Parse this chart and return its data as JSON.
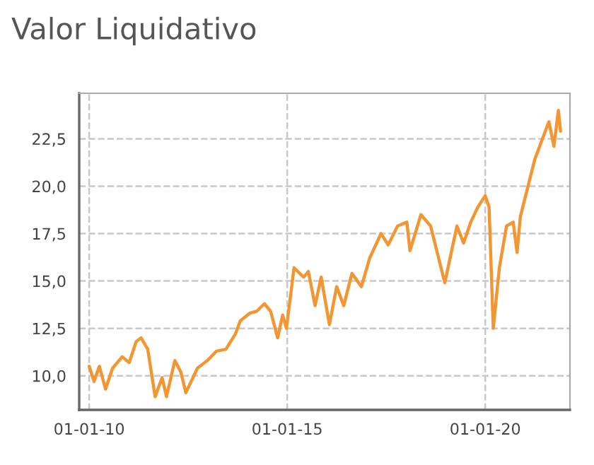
{
  "chart_data": {
    "type": "line",
    "title": "Valor Liquidativo",
    "x": [
      "2010-01-01",
      "2010-02-15",
      "2010-04-05",
      "2010-06-01",
      "2010-08-05",
      "2010-11-01",
      "2011-01-05",
      "2011-03-10",
      "2011-04-25",
      "2011-06-25",
      "2011-09-01",
      "2011-11-05",
      "2011-12-15",
      "2012-03-01",
      "2012-04-25",
      "2012-06-10",
      "2012-09-25",
      "2012-12-25",
      "2013-03-20",
      "2013-06-15",
      "2013-09-10",
      "2013-10-25",
      "2014-01-20",
      "2014-03-25",
      "2014-06-05",
      "2014-08-01",
      "2014-10-05",
      "2014-11-20",
      "2014-12-25",
      "2015-03-05",
      "2015-06-01",
      "2015-07-15",
      "2015-09-15",
      "2015-11-10",
      "2016-01-25",
      "2016-04-01",
      "2016-06-05",
      "2016-08-20",
      "2016-11-15",
      "2017-01-30",
      "2017-05-15",
      "2017-07-20",
      "2017-10-15",
      "2018-01-08",
      "2018-02-06",
      "2018-05-18",
      "2018-08-15",
      "2018-12-24",
      "2019-04-15",
      "2019-06-15",
      "2019-08-20",
      "2019-10-25",
      "2020-01-01",
      "2020-02-05",
      "2020-03-15",
      "2020-05-10",
      "2020-07-15",
      "2020-09-15",
      "2020-10-20",
      "2020-11-20",
      "2021-01-25",
      "2021-04-01",
      "2021-06-05",
      "2021-08-10",
      "2021-09-25",
      "2021-11-05",
      "2021-11-25"
    ],
    "series": [
      {
        "color": "#f39531",
        "values": [
          10.5,
          9.7,
          10.5,
          9.3,
          10.4,
          11.0,
          10.7,
          11.8,
          12.0,
          11.4,
          8.9,
          9.9,
          8.9,
          10.8,
          10.2,
          9.1,
          10.4,
          10.8,
          11.3,
          11.4,
          12.2,
          12.9,
          13.3,
          13.4,
          13.8,
          13.4,
          12.0,
          13.2,
          12.5,
          15.7,
          15.2,
          15.5,
          13.7,
          15.2,
          12.7,
          14.7,
          13.7,
          15.4,
          14.7,
          16.2,
          17.5,
          16.9,
          17.9,
          18.1,
          16.6,
          18.5,
          17.9,
          14.9,
          17.9,
          17.0,
          18.1,
          18.9,
          19.5,
          18.9,
          12.5,
          15.7,
          17.9,
          18.1,
          16.5,
          18.4,
          19.9,
          21.4,
          22.4,
          23.4,
          22.1,
          24.0,
          22.9
        ]
      }
    ],
    "xlim": [
      "2009-10-01",
      "2022-02-20"
    ],
    "xticks": [
      {
        "value": "2010-01-01",
        "label": "01-01-10"
      },
      {
        "value": "2015-01-01",
        "label": "01-01-15"
      },
      {
        "value": "2020-01-01",
        "label": "01-01-20"
      }
    ],
    "ylim": [
      8.2,
      24.9
    ],
    "yticks": [
      {
        "value": 10.0,
        "label": "10,0"
      },
      {
        "value": 12.5,
        "label": "12,5"
      },
      {
        "value": 15.0,
        "label": "15,0"
      },
      {
        "value": 17.5,
        "label": "17,5"
      },
      {
        "value": 20.0,
        "label": "20,0"
      },
      {
        "value": 22.5,
        "label": "22,5"
      }
    ],
    "grid": true,
    "line_style": "solid",
    "marker": "none"
  }
}
